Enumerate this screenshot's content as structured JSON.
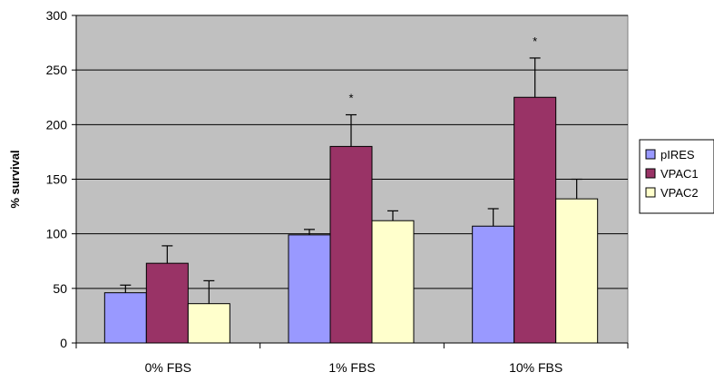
{
  "chart_data": {
    "type": "bar",
    "title": "",
    "xlabel": "",
    "ylabel": "% survival",
    "ylim": [
      0,
      300
    ],
    "yticks": [
      0,
      50,
      100,
      150,
      200,
      250,
      300
    ],
    "grid": true,
    "legend_position": "right",
    "categories": [
      "0% FBS",
      "1% FBS",
      "10% FBS"
    ],
    "series": [
      {
        "name": "pIRES",
        "color": "#9999FF",
        "values": [
          46,
          99,
          107
        ],
        "errors": [
          7,
          5,
          16
        ],
        "significance": [
          "",
          "",
          ""
        ]
      },
      {
        "name": "VPAC1",
        "color": "#993366",
        "values": [
          73,
          180,
          225
        ],
        "errors": [
          16,
          29,
          36
        ],
        "significance": [
          "",
          "*",
          "*"
        ]
      },
      {
        "name": "VPAC2",
        "color": "#FFFFCC",
        "values": [
          36,
          112,
          132
        ],
        "errors": [
          21,
          9,
          18
        ],
        "significance": [
          "",
          "",
          ""
        ]
      }
    ],
    "plot_background": "#C0C0C0"
  }
}
